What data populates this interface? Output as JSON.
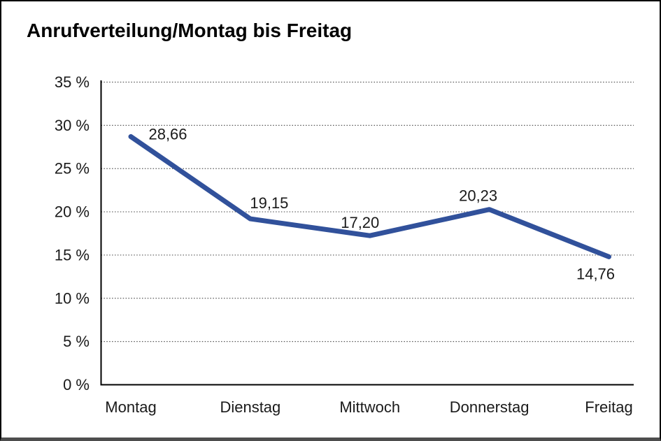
{
  "title": "Anrufverteilung/Montag bis Freitag",
  "chart_data": {
    "type": "line",
    "title": "Anrufverteilung/Montag bis Freitag",
    "categories": [
      "Montag",
      "Dienstag",
      "Mittwoch",
      "Donnerstag",
      "Freitag"
    ],
    "values": [
      28.66,
      19.15,
      17.2,
      20.23,
      14.76
    ],
    "point_labels": [
      "28,66",
      "19,15",
      "17,20",
      "20,23",
      "14,76"
    ],
    "xlabel": "",
    "ylabel": "",
    "ylim": [
      0,
      35
    ],
    "ytick_step": 5,
    "ytick_labels": [
      "0 %",
      "5 %",
      "10 %",
      "15 %",
      "20 %",
      "25 %",
      "30 %",
      "35 %"
    ],
    "grid": "horizontal-dotted",
    "legend": "none",
    "line_color": "#31519B",
    "grid_color": "#555555",
    "axis_color": "#000000",
    "text_color": "#1a1a1a"
  }
}
